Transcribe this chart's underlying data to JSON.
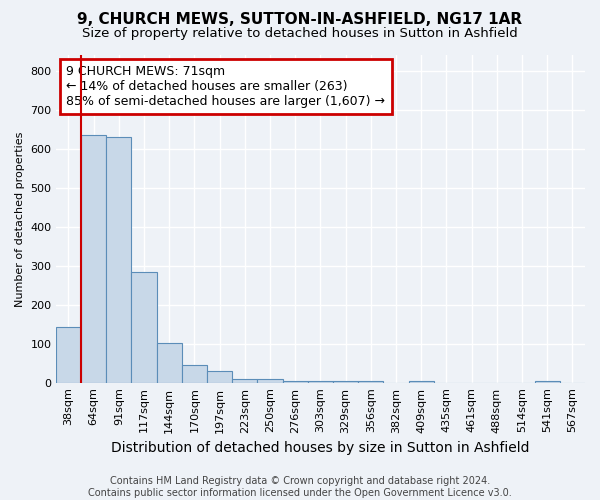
{
  "title": "9, CHURCH MEWS, SUTTON-IN-ASHFIELD, NG17 1AR",
  "subtitle": "Size of property relative to detached houses in Sutton in Ashfield",
  "xlabel": "Distribution of detached houses by size in Sutton in Ashfield",
  "ylabel": "Number of detached properties",
  "footer_line1": "Contains HM Land Registry data © Crown copyright and database right 2024.",
  "footer_line2": "Contains public sector information licensed under the Open Government Licence v3.0.",
  "bins": [
    "38sqm",
    "64sqm",
    "91sqm",
    "117sqm",
    "144sqm",
    "170sqm",
    "197sqm",
    "223sqm",
    "250sqm",
    "276sqm",
    "303sqm",
    "329sqm",
    "356sqm",
    "382sqm",
    "409sqm",
    "435sqm",
    "461sqm",
    "488sqm",
    "514sqm",
    "541sqm",
    "567sqm"
  ],
  "values": [
    145,
    635,
    630,
    285,
    103,
    47,
    32,
    10,
    10,
    5,
    5,
    5,
    5,
    0,
    5,
    0,
    0,
    0,
    0,
    5,
    0
  ],
  "bar_color": "#c8d8e8",
  "bar_edge_color": "#5b8db8",
  "property_line_x": 0.5,
  "property_line_color": "#cc0000",
  "annotation_text": "9 CHURCH MEWS: 71sqm\n← 14% of detached houses are smaller (263)\n85% of semi-detached houses are larger (1,607) →",
  "annotation_box_color": "#cc0000",
  "ylim": [
    0,
    840
  ],
  "yticks": [
    0,
    100,
    200,
    300,
    400,
    500,
    600,
    700,
    800
  ],
  "background_color": "#eef2f7",
  "plot_bg_color": "#eef2f7",
  "grid_color": "#ffffff",
  "title_fontsize": 11,
  "subtitle_fontsize": 9.5,
  "xlabel_fontsize": 10,
  "ylabel_fontsize": 8,
  "tick_fontsize": 8,
  "annotation_fontsize": 9,
  "footer_fontsize": 7
}
